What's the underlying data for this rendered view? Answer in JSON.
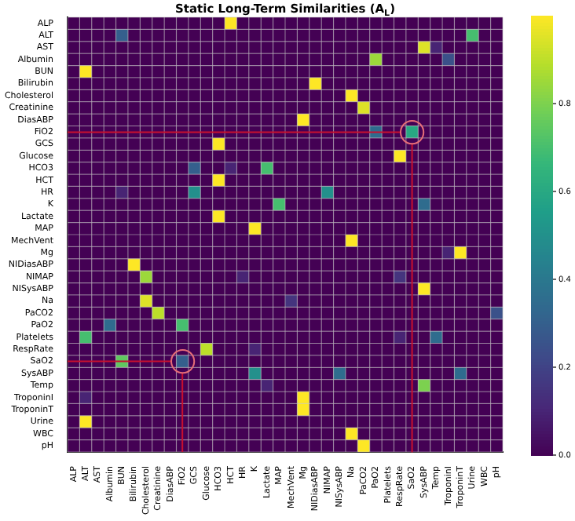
{
  "chart_data": {
    "type": "heatmap",
    "title": "Static Long-Term Similarities (A$_{L}$)",
    "categories": [
      "ALP",
      "ALT",
      "AST",
      "Albumin",
      "BUN",
      "Bilirubin",
      "Cholesterol",
      "Creatinine",
      "DiasABP",
      "FiO2",
      "GCS",
      "Glucose",
      "HCO3",
      "HCT",
      "HR",
      "K",
      "Lactate",
      "MAP",
      "MechVent",
      "Mg",
      "NIDiasABP",
      "NIMAP",
      "NISysABP",
      "Na",
      "PaCO2",
      "PaO2",
      "Platelets",
      "RespRate",
      "SaO2",
      "SysABP",
      "Temp",
      "TroponinI",
      "TroponinT",
      "Urine",
      "WBC",
      "pH"
    ],
    "y_categories": [
      "ALP",
      "ALT",
      "AST",
      "Albumin",
      "BUN",
      "Bilirubin",
      "Cholesterol",
      "Creatinine",
      "DiasABP",
      "FiO2",
      "GCS",
      "Glucose",
      "HCO3",
      "HCT",
      "HR",
      "K",
      "Lactate",
      "MAP",
      "MechVent",
      "Mg",
      "NIDiasABP",
      "NIMAP",
      "NISysABP",
      "Na",
      "PaCO2",
      "PaO2",
      "Platelets",
      "RespRate",
      "SaO2",
      "SysABP",
      "Temp",
      "TroponinI",
      "TroponinT",
      "Urine",
      "WBC",
      "pH"
    ],
    "cells": [
      [
        0,
        0,
        0,
        0,
        0,
        0,
        0,
        0,
        0,
        0,
        0,
        0,
        0,
        1,
        0,
        0,
        0,
        0,
        0,
        0,
        0,
        0,
        0,
        0,
        0,
        0,
        0,
        0,
        0,
        0,
        0,
        0,
        0,
        0,
        0,
        0
      ],
      [
        0,
        0,
        0,
        0,
        0.3,
        0,
        0,
        0,
        0,
        0,
        0,
        0,
        0,
        0,
        0,
        0,
        0,
        0,
        0,
        0,
        0,
        0,
        0,
        0,
        0,
        0,
        0,
        0,
        0,
        0,
        0,
        0,
        0,
        0.7,
        0,
        0
      ],
      [
        0,
        0,
        0,
        0,
        0,
        0,
        0,
        0,
        0,
        0,
        0,
        0,
        0,
        0,
        0,
        0,
        0,
        0,
        0,
        0,
        0,
        0,
        0,
        0,
        0,
        0,
        0,
        0,
        0,
        0.95,
        0.1,
        0,
        0,
        0,
        0,
        0
      ],
      [
        0,
        0,
        0,
        0,
        0,
        0,
        0,
        0,
        0,
        0,
        0,
        0,
        0,
        0,
        0,
        0,
        0,
        0,
        0,
        0,
        0,
        0,
        0,
        0,
        0,
        0.85,
        0,
        0,
        0,
        0,
        0,
        0.25,
        0,
        0,
        0,
        0
      ],
      [
        0,
        1,
        0,
        0,
        0,
        0,
        0,
        0,
        0,
        0,
        0,
        0,
        0,
        0,
        0,
        0,
        0,
        0,
        0,
        0,
        0,
        0,
        0,
        0,
        0,
        0,
        0,
        0,
        0,
        0,
        0,
        0,
        0,
        0,
        0,
        0
      ],
      [
        0,
        0,
        0,
        0,
        0,
        0,
        0,
        0,
        0,
        0,
        0,
        0,
        0,
        0,
        0,
        0,
        0,
        0,
        0,
        0,
        1,
        0,
        0,
        0,
        0,
        0,
        0,
        0,
        0,
        0,
        0,
        0,
        0,
        0,
        0,
        0
      ],
      [
        0,
        0,
        0,
        0,
        0,
        0,
        0,
        0,
        0,
        0,
        0,
        0,
        0,
        0,
        0,
        0,
        0,
        0,
        0,
        0,
        0,
        0,
        0,
        1,
        0,
        0,
        0,
        0,
        0,
        0,
        0,
        0,
        0,
        0,
        0,
        0
      ],
      [
        0,
        0,
        0,
        0,
        0,
        0,
        0,
        0,
        0,
        0,
        0,
        0,
        0,
        0,
        0,
        0,
        0,
        0,
        0,
        0,
        0,
        0,
        0,
        0,
        0.95,
        0,
        0,
        0,
        0,
        0,
        0,
        0,
        0,
        0,
        0,
        0
      ],
      [
        0,
        0,
        0,
        0,
        0,
        0,
        0,
        0,
        0,
        0,
        0,
        0,
        0,
        0,
        0,
        0,
        0,
        0,
        0,
        1,
        0,
        0,
        0,
        0,
        0,
        0,
        0,
        0,
        0,
        0,
        0,
        0,
        0,
        0,
        0,
        0
      ],
      [
        0,
        0,
        0,
        0,
        0,
        0,
        0,
        0,
        0,
        0,
        0,
        0,
        0,
        0,
        0,
        0,
        0,
        0,
        0,
        0,
        0,
        0,
        0,
        0,
        0,
        0.35,
        0,
        0,
        0.6,
        0,
        0,
        0,
        0,
        0,
        0,
        0
      ],
      [
        0,
        0,
        0,
        0,
        0,
        0,
        0,
        0,
        0,
        0,
        0,
        0,
        1,
        0,
        0,
        0,
        0,
        0,
        0,
        0,
        0,
        0,
        0,
        0,
        0,
        0,
        0,
        0,
        0,
        0,
        0,
        0,
        0,
        0,
        0,
        0
      ],
      [
        0,
        0,
        0,
        0,
        0,
        0,
        0,
        0,
        0,
        0,
        0,
        0,
        0,
        0,
        0,
        0,
        0,
        0,
        0,
        0,
        0,
        0,
        0,
        0,
        0,
        0,
        0,
        1,
        0,
        0,
        0,
        0,
        0,
        0,
        0,
        0
      ],
      [
        0,
        0,
        0,
        0,
        0,
        0,
        0,
        0,
        0,
        0,
        0.3,
        0,
        0,
        0.1,
        0,
        0,
        0.7,
        0,
        0,
        0,
        0,
        0,
        0,
        0,
        0,
        0,
        0,
        0,
        0,
        0,
        0,
        0,
        0,
        0,
        0,
        0
      ],
      [
        0,
        0,
        0,
        0,
        0,
        0,
        0,
        0,
        0,
        0,
        0,
        0,
        1,
        0,
        0,
        0,
        0,
        0,
        0,
        0,
        0,
        0,
        0,
        0,
        0,
        0,
        0,
        0,
        0,
        0,
        0,
        0,
        0,
        0,
        0,
        0
      ],
      [
        0,
        0,
        0,
        0,
        0.1,
        0,
        0,
        0,
        0,
        0,
        0.5,
        0,
        0,
        0,
        0,
        0,
        0,
        0,
        0,
        0,
        0,
        0.5,
        0,
        0,
        0,
        0,
        0,
        0,
        0,
        0,
        0,
        0,
        0,
        0,
        0,
        0
      ],
      [
        0,
        0,
        0,
        0,
        0,
        0,
        0,
        0,
        0,
        0,
        0,
        0,
        0,
        0,
        0,
        0,
        0,
        0.7,
        0,
        0,
        0,
        0,
        0,
        0,
        0,
        0,
        0,
        0,
        0,
        0.35,
        0,
        0,
        0,
        0,
        0,
        0
      ],
      [
        0,
        0,
        0,
        0,
        0,
        0,
        0,
        0,
        0,
        0,
        0,
        0,
        1,
        0,
        0,
        0,
        0,
        0,
        0,
        0,
        0,
        0,
        0,
        0,
        0,
        0,
        0,
        0,
        0,
        0,
        0,
        0,
        0,
        0,
        0,
        0
      ],
      [
        0,
        0,
        0,
        0,
        0,
        0,
        0,
        0,
        0,
        0,
        0,
        0,
        0,
        0,
        0,
        1,
        0,
        0,
        0,
        0,
        0,
        0,
        0,
        0,
        0,
        0,
        0,
        0,
        0,
        0,
        0,
        0,
        0,
        0,
        0,
        0
      ],
      [
        0,
        0,
        0,
        0,
        0,
        0,
        0,
        0,
        0,
        0,
        0,
        0,
        0,
        0,
        0,
        0,
        0,
        0,
        0,
        0,
        0,
        0,
        0,
        1,
        0,
        0,
        0,
        0,
        0,
        0,
        0,
        0,
        0,
        0,
        0,
        0
      ],
      [
        0,
        0,
        0,
        0,
        0,
        0,
        0,
        0,
        0,
        0,
        0,
        0,
        0,
        0,
        0,
        0,
        0,
        0,
        0,
        0,
        0,
        0,
        0,
        0,
        0,
        0,
        0,
        0,
        0,
        0,
        0,
        0.1,
        1,
        0,
        0,
        0
      ],
      [
        0,
        0,
        0,
        0,
        0,
        1,
        0,
        0,
        0,
        0,
        0,
        0,
        0,
        0,
        0,
        0,
        0,
        0,
        0,
        0,
        0,
        0,
        0,
        0,
        0,
        0,
        0,
        0,
        0,
        0,
        0,
        0,
        0,
        0,
        0,
        0
      ],
      [
        0,
        0,
        0,
        0,
        0,
        0,
        0.85,
        0,
        0,
        0,
        0,
        0,
        0,
        0,
        0.1,
        0,
        0,
        0,
        0,
        0,
        0,
        0,
        0,
        0,
        0,
        0,
        0,
        0.15,
        0,
        0,
        0,
        0,
        0,
        0,
        0,
        0
      ],
      [
        0,
        0,
        0,
        0,
        0,
        0,
        0,
        0,
        0,
        0,
        0,
        0,
        0,
        0,
        0,
        0,
        0,
        0,
        0,
        0,
        0,
        0,
        0,
        0,
        0,
        0,
        0,
        0,
        0,
        1,
        0,
        0,
        0,
        0,
        0,
        0
      ],
      [
        0,
        0,
        0,
        0,
        0,
        0,
        0.95,
        0,
        0,
        0,
        0,
        0,
        0,
        0,
        0,
        0,
        0,
        0,
        0.15,
        0,
        0,
        0,
        0,
        0,
        0,
        0,
        0,
        0,
        0,
        0,
        0,
        0,
        0,
        0,
        0,
        0
      ],
      [
        0,
        0,
        0,
        0,
        0,
        0,
        0,
        0.9,
        0,
        0,
        0,
        0,
        0,
        0,
        0,
        0,
        0,
        0,
        0,
        0,
        0,
        0,
        0,
        0,
        0,
        0,
        0,
        0,
        0,
        0,
        0,
        0,
        0,
        0,
        0,
        0.25
      ],
      [
        0,
        0,
        0,
        0.35,
        0,
        0,
        0,
        0,
        0,
        0.7,
        0,
        0,
        0,
        0,
        0,
        0,
        0,
        0,
        0,
        0,
        0,
        0,
        0,
        0,
        0,
        0,
        0,
        0,
        0,
        0,
        0,
        0,
        0,
        0,
        0,
        0
      ],
      [
        0,
        0.7,
        0,
        0,
        0,
        0,
        0,
        0,
        0,
        0,
        0,
        0,
        0,
        0,
        0,
        0,
        0,
        0,
        0,
        0,
        0,
        0,
        0,
        0,
        0,
        0,
        0,
        0.1,
        0,
        0,
        0.35,
        0,
        0,
        0,
        0,
        0
      ],
      [
        0,
        0,
        0,
        0,
        0,
        0,
        0,
        0,
        0,
        0,
        0,
        0.9,
        0,
        0,
        0,
        0.1,
        0,
        0,
        0,
        0,
        0,
        0,
        0,
        0,
        0,
        0,
        0,
        0,
        0,
        0,
        0,
        0,
        0,
        0,
        0,
        0
      ],
      [
        0,
        0,
        0,
        0,
        0.75,
        0,
        0,
        0,
        0,
        0.3,
        0,
        0,
        0,
        0,
        0,
        0,
        0,
        0,
        0,
        0,
        0,
        0,
        0,
        0,
        0,
        0,
        0,
        0,
        0,
        0,
        0,
        0,
        0,
        0,
        0,
        0
      ],
      [
        0,
        0,
        0,
        0,
        0,
        0,
        0,
        0,
        0,
        0,
        0,
        0,
        0,
        0,
        0,
        0.5,
        0,
        0,
        0,
        0,
        0,
        0,
        0.35,
        0,
        0,
        0,
        0,
        0,
        0,
        0,
        0,
        0,
        0.35,
        0,
        0,
        0
      ],
      [
        0,
        0,
        0,
        0,
        0,
        0,
        0,
        0,
        0,
        0,
        0,
        0,
        0,
        0,
        0,
        0,
        0.1,
        0,
        0,
        0,
        0,
        0,
        0,
        0,
        0,
        0,
        0,
        0,
        0,
        0.8,
        0,
        0,
        0,
        0,
        0,
        0
      ],
      [
        0,
        0.1,
        0,
        0,
        0,
        0,
        0,
        0,
        0,
        0,
        0,
        0,
        0,
        0,
        0,
        0,
        0,
        0,
        0,
        1,
        0,
        0,
        0,
        0,
        0,
        0,
        0,
        0,
        0,
        0,
        0,
        0,
        0,
        0,
        0,
        0
      ],
      [
        0,
        0,
        0,
        0,
        0,
        0,
        0,
        0,
        0,
        0,
        0,
        0,
        0,
        0,
        0,
        0,
        0,
        0,
        0,
        1,
        0,
        0,
        0,
        0,
        0,
        0,
        0,
        0,
        0,
        0,
        0,
        0,
        0,
        0,
        0,
        0
      ],
      [
        0,
        1,
        0,
        0,
        0,
        0,
        0,
        0,
        0,
        0,
        0,
        0,
        0,
        0,
        0,
        0,
        0,
        0,
        0,
        0,
        0,
        0,
        0,
        0,
        0,
        0,
        0,
        0,
        0,
        0,
        0,
        0,
        0,
        0,
        0,
        0
      ],
      [
        0,
        0,
        0,
        0,
        0,
        0,
        0,
        0,
        0,
        0,
        0,
        0,
        0,
        0,
        0,
        0,
        0,
        0,
        0,
        0,
        0,
        0,
        0,
        1,
        0,
        0,
        0,
        0,
        0,
        0,
        0,
        0,
        0,
        0,
        0,
        0
      ],
      [
        0,
        0,
        0,
        0,
        0,
        0,
        0,
        0,
        0,
        0,
        0,
        0,
        0,
        0,
        0,
        0,
        0,
        0,
        0,
        0,
        0,
        0,
        0,
        0,
        1,
        0,
        0,
        0,
        0,
        0,
        0,
        0,
        0,
        0,
        0,
        0
      ]
    ],
    "clim": [
      0,
      1
    ],
    "cticks": [
      {
        "value": 0,
        "label": "0.0"
      },
      {
        "value": 0.2,
        "label": "0.2"
      },
      {
        "value": 0.4,
        "label": "0.4"
      },
      {
        "value": 0.6,
        "label": "0.6"
      },
      {
        "value": 0.8,
        "label": "0.8"
      }
    ],
    "grid": true
  }
}
